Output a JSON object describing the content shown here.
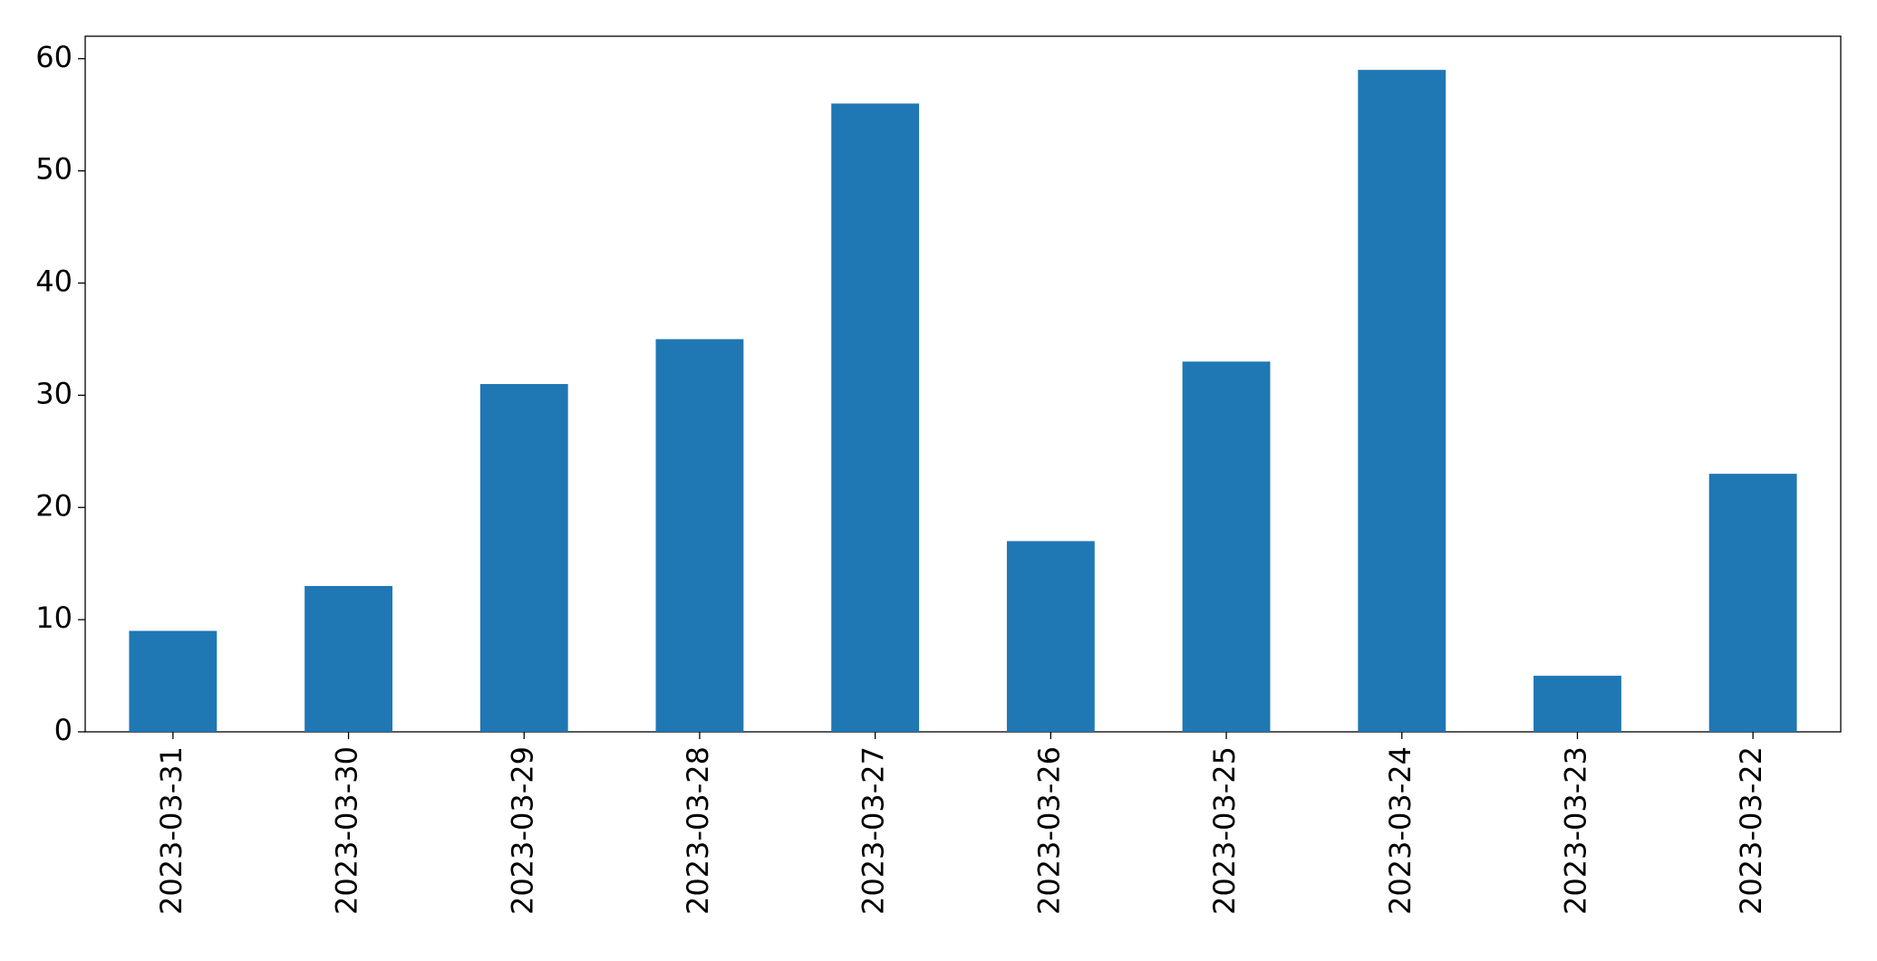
{
  "chart_data": {
    "type": "bar",
    "categories": [
      "2023-03-31",
      "2023-03-30",
      "2023-03-29",
      "2023-03-28",
      "2023-03-27",
      "2023-03-26",
      "2023-03-25",
      "2023-03-24",
      "2023-03-23",
      "2023-03-22"
    ],
    "values": [
      9,
      13,
      31,
      35,
      56,
      17,
      33,
      59,
      5,
      23
    ],
    "color": "#1f77b4",
    "ylim": [
      0,
      62
    ],
    "yticks": [
      0,
      10,
      20,
      30,
      40,
      50,
      60
    ],
    "grid": false
  }
}
